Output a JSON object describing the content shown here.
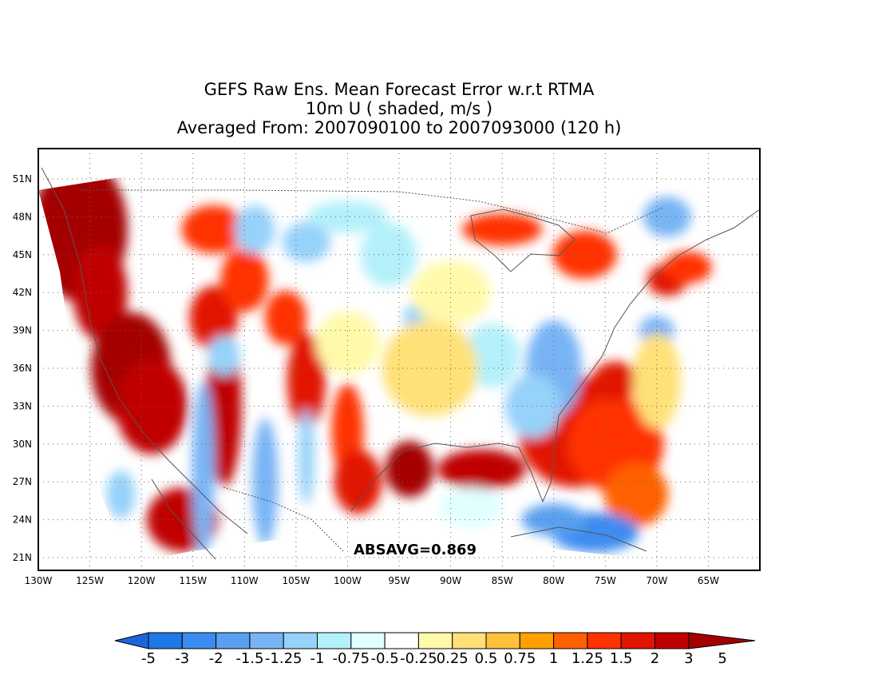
{
  "title": {
    "line1": "GEFS Raw Ens. Mean Forecast Error w.r.t RTMA",
    "line2": "10m U ( shaded, m/s )",
    "line3": "Averaged From: 2007090100 to 2007093000 (120 h)"
  },
  "map": {
    "lat_labels": [
      "51N",
      "48N",
      "45N",
      "42N",
      "39N",
      "36N",
      "33N",
      "30N",
      "27N",
      "24N",
      "21N"
    ],
    "lat_values": [
      51,
      48,
      45,
      42,
      39,
      36,
      33,
      30,
      27,
      24,
      21
    ],
    "lon_labels": [
      "130W",
      "125W",
      "120W",
      "115W",
      "110W",
      "105W",
      "100W",
      "95W",
      "90W",
      "85W",
      "80W",
      "75W",
      "70W",
      "65W"
    ],
    "lon_values": [
      -130,
      -125,
      -120,
      -115,
      -110,
      -105,
      -100,
      -95,
      -90,
      -85,
      -80,
      -75,
      -70,
      -65
    ],
    "annotation": "ABSAVG=0.869"
  },
  "colorbar": {
    "labels": [
      "-5",
      "-3",
      "-2",
      "-1.5",
      "-1.25",
      "-1",
      "-0.75",
      "-0.5",
      "-0.25",
      "0.25",
      "0.5",
      "0.75",
      "1",
      "1.25",
      "1.5",
      "2",
      "3",
      "5"
    ],
    "colors": [
      "#1e64dc",
      "#1e78e6",
      "#3c8cf0",
      "#5aa0f0",
      "#78b4f5",
      "#96d2fa",
      "#b4f0fa",
      "#e1ffff",
      "#ffffff",
      "#fffaaa",
      "#ffe178",
      "#ffc03c",
      "#ffa000",
      "#ff6000",
      "#ff3200",
      "#e11400",
      "#c00000",
      "#a50000"
    ]
  }
}
